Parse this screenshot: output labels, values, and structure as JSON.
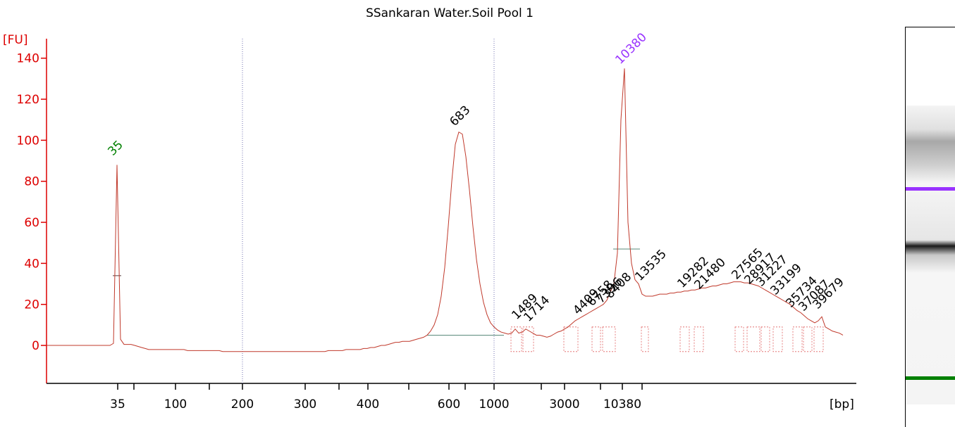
{
  "chart_data": {
    "type": "line",
    "title": "SSankaran Water.Soil Pool 1",
    "y_label": "[FU]",
    "x_label": "[bp]",
    "ylim": [
      -18.5,
      149.5
    ],
    "yticks": [
      0,
      20,
      40,
      60,
      80,
      100,
      120,
      140
    ],
    "xticks": [
      35,
      100,
      200,
      300,
      400,
      600,
      1000,
      3000,
      10380
    ],
    "series": [
      {
        "color": "#c0392b",
        "values": [
          0,
          0,
          0,
          0,
          0,
          0,
          0,
          0,
          0,
          0,
          0,
          0,
          0,
          0,
          0,
          0,
          0,
          0,
          0,
          1,
          88,
          3,
          0.5,
          0.5,
          0.5,
          0,
          -0.5,
          -1,
          -1.5,
          -2,
          -2,
          -2,
          -2,
          -2,
          -2,
          -2,
          -2,
          -2,
          -2,
          -2,
          -2.5,
          -2.5,
          -2.5,
          -2.5,
          -2.5,
          -2.5,
          -2.5,
          -2.5,
          -2.5,
          -2.5,
          -3,
          -3,
          -3,
          -3,
          -3,
          -3,
          -3,
          -3,
          -3,
          -3,
          -3,
          -3,
          -3,
          -3,
          -3,
          -3,
          -3,
          -3,
          -3,
          -3,
          -3,
          -3,
          -3,
          -3,
          -3,
          -3,
          -3,
          -3,
          -3,
          -3,
          -2.5,
          -2.5,
          -2.5,
          -2.5,
          -2.5,
          -2,
          -2,
          -2,
          -2,
          -2,
          -1.5,
          -1.5,
          -1,
          -1,
          -0.5,
          0,
          0,
          0.5,
          1,
          1.5,
          1.5,
          2,
          2,
          2,
          2.5,
          3,
          3.5,
          4,
          5,
          7,
          10,
          15,
          24,
          38,
          58,
          80,
          98,
          104,
          103,
          92,
          76,
          58,
          42,
          30,
          21,
          15,
          11,
          9,
          7.5,
          6.5,
          6,
          5.5,
          6,
          8,
          6,
          6.5,
          8,
          7,
          6,
          5,
          5,
          4.5,
          4,
          4.5,
          5.5,
          6.5,
          7,
          8,
          9,
          10.5,
          12,
          13,
          14,
          15,
          16,
          17,
          18,
          19,
          20,
          22,
          26,
          30,
          45,
          110,
          135,
          60,
          40,
          32,
          30,
          25,
          24,
          24,
          24,
          24.5,
          25,
          25,
          25,
          25.5,
          25.5,
          26,
          26,
          26.5,
          26.5,
          27,
          27,
          27.5,
          28,
          28,
          28.5,
          29,
          29,
          29.5,
          30,
          30,
          30.5,
          31,
          31,
          31,
          30.5,
          30.5,
          30,
          29.5,
          29,
          28,
          27,
          26,
          25,
          24,
          23,
          22,
          21,
          20,
          18.5,
          17,
          16,
          14.5,
          13,
          12,
          11,
          12,
          14,
          9,
          8,
          7,
          6.5,
          6,
          5
        ]
      }
    ],
    "peak_labels": [
      {
        "label": "35",
        "color": "#008000"
      },
      {
        "label": "683",
        "color": "#000000"
      },
      {
        "label": "10380",
        "color": "#9933ff"
      },
      {
        "label": "1489",
        "color": "#000000"
      },
      {
        "label": "1714",
        "color": "#000000"
      },
      {
        "label": "4409",
        "color": "#000000"
      },
      {
        "label": "6758",
        "color": "#000000"
      },
      {
        "label": "7396",
        "color": "#000000"
      },
      {
        "label": "8408",
        "color": "#000000"
      },
      {
        "label": "13535",
        "color": "#000000"
      },
      {
        "label": "19282",
        "color": "#000000"
      },
      {
        "label": "21480",
        "color": "#000000"
      },
      {
        "label": "27565",
        "color": "#000000"
      },
      {
        "label": "28917",
        "color": "#000000"
      },
      {
        "label": "31227",
        "color": "#000000"
      },
      {
        "label": "33199",
        "color": "#000000"
      },
      {
        "label": "35734",
        "color": "#000000"
      },
      {
        "label": "37087",
        "color": "#000000"
      },
      {
        "label": "39679",
        "color": "#000000"
      }
    ]
  }
}
